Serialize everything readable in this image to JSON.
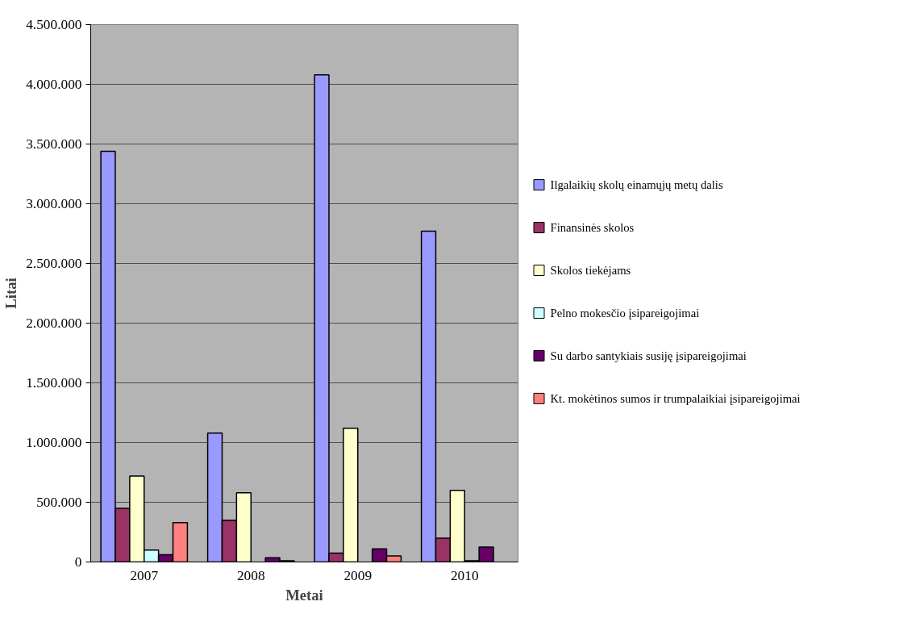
{
  "chart_data": {
    "type": "bar",
    "xlabel": "Metai",
    "ylabel": "Litai",
    "categories": [
      "2007",
      "2008",
      "2009",
      "2010"
    ],
    "series": [
      {
        "name": "Ilgalaikių skolų einamųjų metų dalis",
        "color": "#9999ff",
        "values": [
          3440000,
          1080000,
          4080000,
          2770000
        ]
      },
      {
        "name": "Finansinės skolos",
        "color": "#993366",
        "values": [
          450000,
          350000,
          75000,
          200000
        ]
      },
      {
        "name": "Skolos tiekėjams",
        "color": "#ffffcc",
        "values": [
          720000,
          580000,
          1120000,
          600000
        ]
      },
      {
        "name": "Pelno mokesčio įsipareigojimai",
        "color": "#ccffff",
        "values": [
          100000,
          0,
          0,
          10000
        ]
      },
      {
        "name": "Su darbo santykiais susiję įsipareigojimai",
        "color": "#660066",
        "values": [
          60000,
          35000,
          110000,
          125000
        ]
      },
      {
        "name": "Kt. mokėtinos sumos ir trumpalaikiai įsipareigojimai",
        "color": "#ff8080",
        "values": [
          330000,
          10000,
          50000,
          0
        ]
      }
    ],
    "ylim": [
      0,
      4500000
    ],
    "yticks": [
      {
        "value": 0,
        "label": "0"
      },
      {
        "value": 500000,
        "label": "500.000"
      },
      {
        "value": 1000000,
        "label": "1.000.000"
      },
      {
        "value": 1500000,
        "label": "1.500.000"
      },
      {
        "value": 2000000,
        "label": "2.000.000"
      },
      {
        "value": 2500000,
        "label": "2.500.000"
      },
      {
        "value": 3000000,
        "label": "3.000.000"
      },
      {
        "value": 3500000,
        "label": "3.500.000"
      },
      {
        "value": 4000000,
        "label": "4.000.000"
      },
      {
        "value": 4500000,
        "label": "4.500.000"
      }
    ],
    "grid": "y",
    "legend": "right"
  }
}
